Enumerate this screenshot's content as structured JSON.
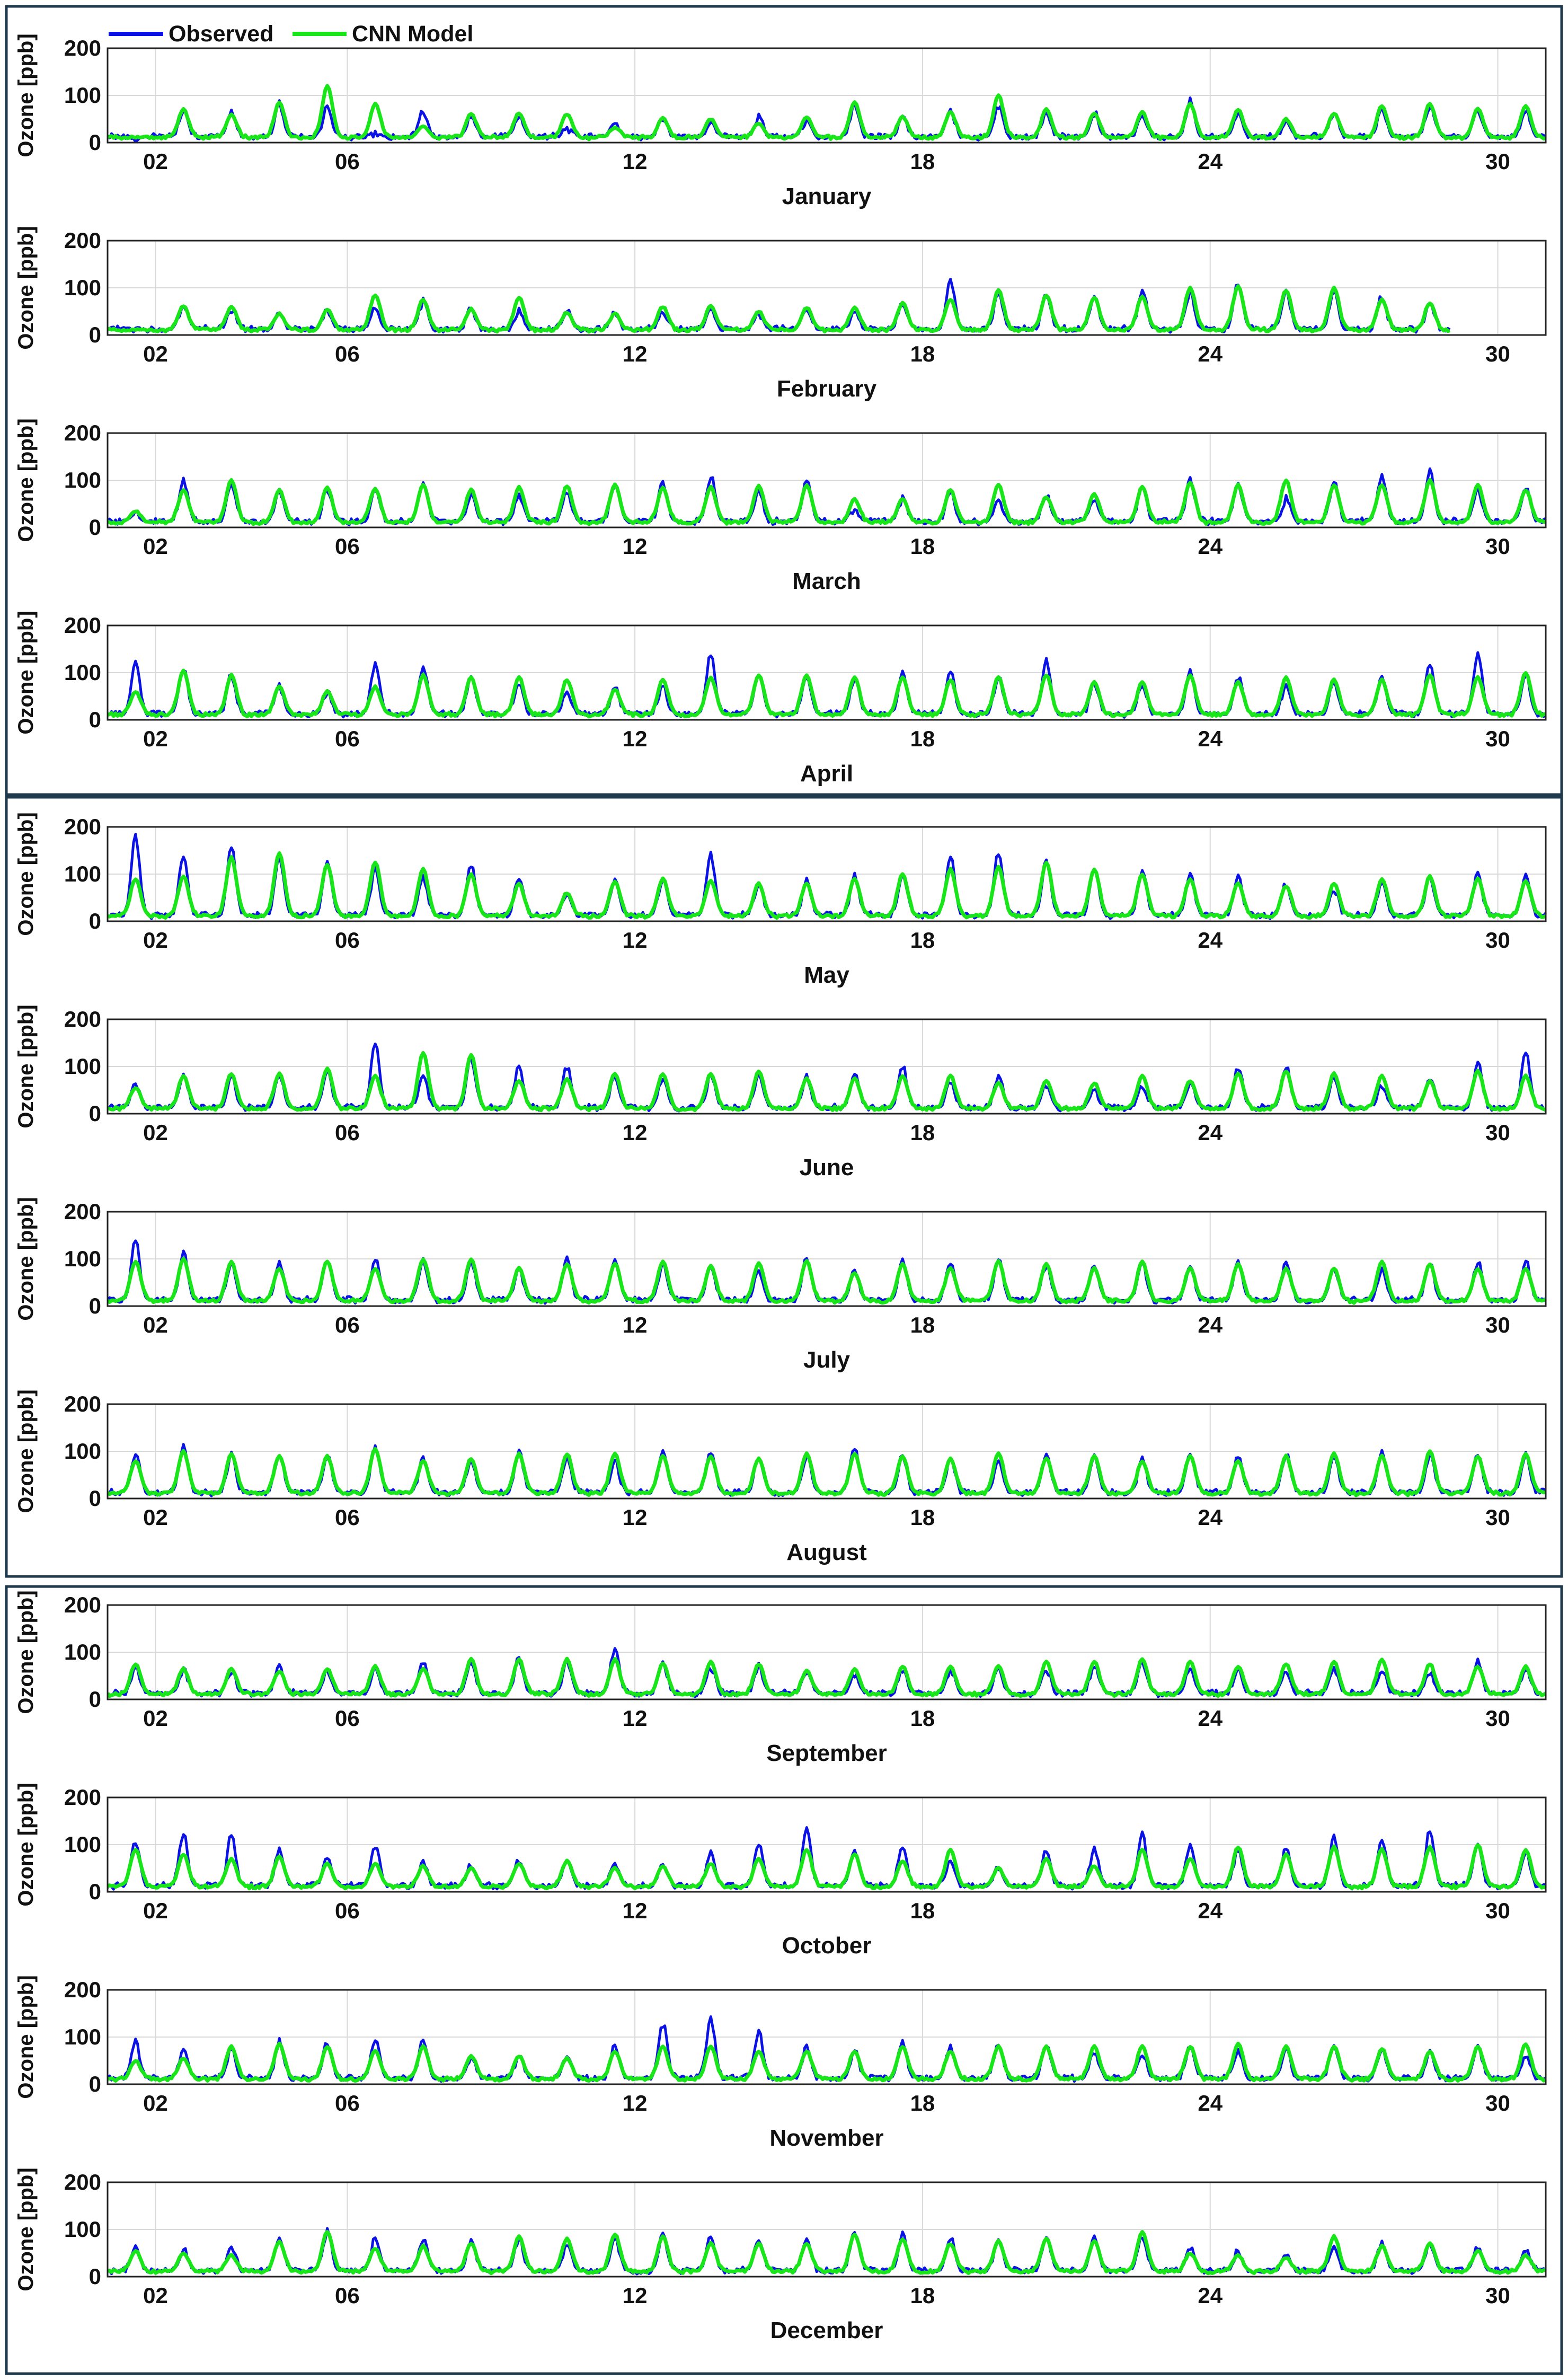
{
  "legend": {
    "placement": "top-left",
    "items": [
      {
        "label": "Observed",
        "color": "#0a12e6"
      },
      {
        "label": "CNN Model",
        "color": "#19e619"
      }
    ]
  },
  "colors": {
    "frame": "#1f3a4d",
    "grid": "#d9d9d9",
    "axis": "#222222"
  },
  "chart_data": {
    "type": "line",
    "description_of_series": "Hourly ozone, one subplot per month",
    "ylabel": "Ozone [ppb]",
    "ylim": [
      0,
      200
    ],
    "yticks": [
      0,
      100,
      200
    ],
    "xlim_days": [
      1,
      31
    ],
    "xticks": [
      "02",
      "06",
      "12",
      "18",
      "24",
      "30"
    ],
    "grid": true,
    "series_names": [
      "Observed",
      "CNN Model"
    ],
    "months": [
      {
        "name": "January",
        "days": 31,
        "obs_peaks": [
          10,
          68,
          62,
          80,
          75,
          18,
          66,
          58,
          55,
          30,
          45,
          48,
          40,
          52,
          45,
          80,
          55,
          70,
          75,
          62,
          62,
          58,
          85,
          62,
          45,
          60,
          70,
          78,
          72,
          70,
          72
        ],
        "model_peaks": [
          12,
          70,
          60,
          85,
          120,
          82,
          35,
          62,
          62,
          60,
          32,
          52,
          50,
          40,
          55,
          85,
          55,
          65,
          100,
          70,
          62,
          65,
          82,
          70,
          50,
          62,
          78,
          82,
          72,
          78,
          85
        ]
      },
      {
        "name": "February",
        "days": 28,
        "obs_peaks": [
          10,
          60,
          55,
          48,
          52,
          58,
          70,
          55,
          52,
          50,
          48,
          50,
          55,
          45,
          52,
          48,
          65,
          115,
          92,
          85,
          80,
          95,
          90,
          110,
          90,
          90,
          80,
          65
        ],
        "model_peaks": [
          12,
          62,
          60,
          45,
          55,
          85,
          75,
          55,
          80,
          48,
          45,
          60,
          62,
          50,
          58,
          58,
          68,
          75,
          95,
          85,
          80,
          82,
          100,
          105,
          95,
          100,
          75,
          68
        ]
      },
      {
        "name": "March",
        "days": 31,
        "obs_peaks": [
          30,
          100,
          95,
          78,
          80,
          80,
          95,
          70,
          65,
          75,
          95,
          95,
          110,
          80,
          100,
          40,
          60,
          75,
          55,
          70,
          60,
          85,
          100,
          95,
          60,
          95,
          110,
          120,
          80,
          85,
          85
        ],
        "model_peaks": [
          35,
          80,
          100,
          80,
          85,
          82,
          90,
          80,
          85,
          88,
          90,
          85,
          85,
          88,
          90,
          60,
          60,
          80,
          90,
          65,
          70,
          85,
          95,
          90,
          100,
          90,
          90,
          100,
          90,
          80,
          88
        ]
      },
      {
        "name": "April",
        "days": 30,
        "obs_peaks": [
          120,
          110,
          95,
          70,
          60,
          120,
          115,
          90,
          80,
          60,
          70,
          70,
          145,
          100,
          95,
          90,
          100,
          100,
          90,
          125,
          80,
          75,
          100,
          90,
          70,
          80,
          90,
          120,
          140,
          95
        ],
        "model_peaks": [
          60,
          105,
          95,
          70,
          60,
          70,
          95,
          90,
          90,
          85,
          65,
          85,
          90,
          95,
          95,
          90,
          90,
          85,
          90,
          95,
          80,
          80,
          95,
          80,
          90,
          85,
          85,
          95,
          90,
          100
        ]
      },
      {
        "name": "May",
        "days": 31,
        "obs_peaks": [
          180,
          140,
          155,
          140,
          125,
          110,
          95,
          120,
          95,
          60,
          90,
          90,
          140,
          80,
          85,
          95,
          100,
          140,
          150,
          130,
          115,
          110,
          100,
          95,
          80,
          70,
          85,
          95,
          100,
          95,
          90
        ],
        "model_peaks": [
          90,
          95,
          135,
          145,
          120,
          125,
          110,
          100,
          80,
          60,
          85,
          90,
          85,
          80,
          80,
          90,
          100,
          110,
          115,
          125,
          110,
          100,
          90,
          80,
          75,
          80,
          90,
          95,
          90,
          85,
          80
        ]
      },
      {
        "name": "June",
        "days": 30,
        "obs_peaks": [
          65,
          85,
          80,
          80,
          90,
          150,
          80,
          120,
          100,
          100,
          80,
          75,
          80,
          80,
          80,
          85,
          100,
          65,
          80,
          60,
          50,
          55,
          65,
          100,
          100,
          80,
          60,
          80,
          110,
          130
        ],
        "model_peaks": [
          55,
          80,
          85,
          85,
          95,
          80,
          130,
          125,
          70,
          75,
          85,
          85,
          85,
          90,
          75,
          75,
          80,
          80,
          65,
          70,
          65,
          80,
          70,
          85,
          90,
          85,
          80,
          70,
          90,
          80
        ]
      },
      {
        "name": "July",
        "days": 31,
        "obs_peaks": [
          140,
          115,
          90,
          90,
          100,
          100,
          95,
          95,
          80,
          100,
          100,
          90,
          85,
          80,
          100,
          80,
          95,
          95,
          100,
          85,
          90,
          90,
          80,
          95,
          95,
          80,
          80,
          90,
          95,
          95,
          90
        ],
        "model_peaks": [
          95,
          100,
          95,
          80,
          95,
          80,
          100,
          100,
          80,
          90,
          90,
          95,
          85,
          90,
          95,
          70,
          90,
          80,
          95,
          90,
          80,
          95,
          80,
          90,
          80,
          80,
          95,
          90,
          80,
          80,
          85
        ]
      },
      {
        "name": "August",
        "days": 31,
        "obs_peaks": [
          95,
          110,
          95,
          95,
          90,
          110,
          85,
          80,
          100,
          90,
          80,
          100,
          100,
          85,
          90,
          110,
          90,
          85,
          85,
          90,
          90,
          85,
          95,
          90,
          95,
          90,
          95,
          95,
          95,
          90,
          95
        ],
        "model_peaks": [
          80,
          100,
          95,
          90,
          90,
          105,
          80,
          85,
          95,
          95,
          95,
          90,
          90,
          85,
          95,
          95,
          90,
          85,
          95,
          85,
          90,
          80,
          90,
          80,
          90,
          95,
          90,
          100,
          90,
          95,
          85
        ]
      },
      {
        "name": "September",
        "days": 30,
        "obs_peaks": [
          70,
          60,
          60,
          75,
          60,
          65,
          80,
          80,
          85,
          80,
          110,
          80,
          70,
          70,
          60,
          55,
          60,
          60,
          65,
          60,
          70,
          75,
          65,
          60,
          60,
          65,
          65,
          60,
          80,
          65
        ],
        "model_peaks": [
          75,
          65,
          65,
          60,
          65,
          70,
          65,
          85,
          85,
          85,
          85,
          75,
          80,
          75,
          60,
          65,
          70,
          70,
          70,
          80,
          80,
          85,
          80,
          70,
          75,
          80,
          85,
          75,
          70,
          70
        ]
      },
      {
        "name": "October",
        "days": 31,
        "obs_peaks": [
          110,
          125,
          120,
          90,
          70,
          100,
          60,
          55,
          70,
          65,
          60,
          60,
          80,
          100,
          130,
          85,
          100,
          65,
          50,
          85,
          90,
          120,
          100,
          90,
          90,
          115,
          110,
          130,
          100,
          80,
          65
        ],
        "model_peaks": [
          90,
          80,
          70,
          75,
          60,
          60,
          55,
          50,
          60,
          65,
          50,
          55,
          60,
          70,
          90,
          80,
          65,
          90,
          50,
          70,
          55,
          90,
          70,
          95,
          80,
          95,
          90,
          95,
          100,
          90,
          90
        ]
      },
      {
        "name": "November",
        "days": 30,
        "obs_peaks": [
          90,
          75,
          75,
          90,
          90,
          95,
          95,
          55,
          60,
          60,
          80,
          130,
          140,
          110,
          80,
          70,
          90,
          80,
          90,
          85,
          70,
          65,
          80,
          70,
          75,
          80,
          75,
          70,
          80,
          60
        ],
        "model_peaks": [
          50,
          55,
          80,
          85,
          80,
          70,
          80,
          60,
          60,
          55,
          70,
          80,
          80,
          70,
          70,
          70,
          80,
          70,
          80,
          80,
          80,
          80,
          80,
          85,
          80,
          80,
          75,
          70,
          80,
          85
        ]
      },
      {
        "name": "December",
        "days": 31,
        "obs_peaks": [
          60,
          55,
          60,
          85,
          95,
          80,
          80,
          75,
          80,
          70,
          80,
          90,
          85,
          80,
          80,
          95,
          90,
          80,
          75,
          80,
          85,
          85,
          60,
          55,
          45,
          60,
          70,
          70,
          60,
          55,
          55
        ],
        "model_peaks": [
          55,
          50,
          45,
          75,
          95,
          60,
          65,
          70,
          85,
          80,
          90,
          85,
          70,
          70,
          70,
          90,
          80,
          70,
          75,
          80,
          75,
          95,
          50,
          45,
          40,
          85,
          65,
          70,
          55,
          45,
          40
        ]
      }
    ]
  }
}
